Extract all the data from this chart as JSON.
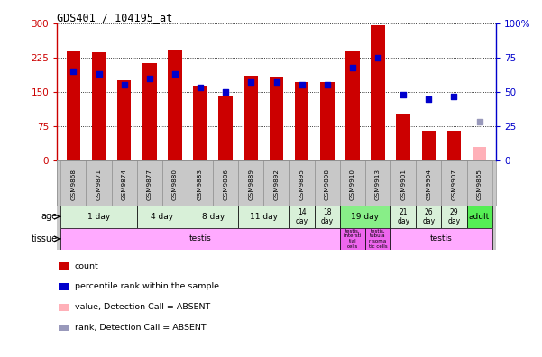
{
  "title": "GDS401 / 104195_at",
  "samples": [
    "GSM9868",
    "GSM9871",
    "GSM9874",
    "GSM9877",
    "GSM9880",
    "GSM9883",
    "GSM9886",
    "GSM9889",
    "GSM9892",
    "GSM9895",
    "GSM9898",
    "GSM9910",
    "GSM9913",
    "GSM9901",
    "GSM9904",
    "GSM9907",
    "GSM9865"
  ],
  "counts": [
    238,
    237,
    175,
    213,
    240,
    163,
    140,
    185,
    183,
    172,
    172,
    238,
    295,
    103,
    66,
    66,
    30
  ],
  "ranks": [
    65,
    63,
    55,
    60,
    63,
    53,
    50,
    57,
    57,
    55,
    55,
    68,
    75,
    48,
    45,
    47,
    28
  ],
  "absent": [
    false,
    false,
    false,
    false,
    false,
    false,
    false,
    false,
    false,
    false,
    false,
    false,
    false,
    false,
    false,
    false,
    true
  ],
  "absent_rank": [
    false,
    false,
    false,
    false,
    false,
    false,
    false,
    false,
    false,
    false,
    false,
    false,
    false,
    false,
    false,
    false,
    true
  ],
  "count_color": "#cc0000",
  "rank_color": "#0000cc",
  "absent_count_color": "#ffb0b8",
  "absent_rank_color": "#9999bb",
  "ylim_left": [
    0,
    300
  ],
  "ylim_right": [
    0,
    100
  ],
  "yticks_left": [
    0,
    75,
    150,
    225,
    300
  ],
  "yticks_right": [
    0,
    25,
    50,
    75,
    100
  ],
  "age_groups": [
    {
      "label": "1 day",
      "start": 0,
      "end": 2,
      "color": "#d8f0d8"
    },
    {
      "label": "4 day",
      "start": 3,
      "end": 4,
      "color": "#d8f0d8"
    },
    {
      "label": "8 day",
      "start": 5,
      "end": 6,
      "color": "#d8f0d8"
    },
    {
      "label": "11 day",
      "start": 7,
      "end": 8,
      "color": "#d8f0d8"
    },
    {
      "label": "14\nday",
      "start": 9,
      "end": 9,
      "color": "#d8f0d8"
    },
    {
      "label": "18\nday",
      "start": 10,
      "end": 10,
      "color": "#d8f0d8"
    },
    {
      "label": "19 day",
      "start": 11,
      "end": 12,
      "color": "#88ee88"
    },
    {
      "label": "21\nday",
      "start": 13,
      "end": 13,
      "color": "#d8f0d8"
    },
    {
      "label": "26\nday",
      "start": 14,
      "end": 14,
      "color": "#d8f0d8"
    },
    {
      "label": "29\nday",
      "start": 15,
      "end": 15,
      "color": "#d8f0d8"
    },
    {
      "label": "adult",
      "start": 16,
      "end": 16,
      "color": "#55ee55"
    }
  ],
  "tissue_groups": [
    {
      "label": "testis",
      "start": 0,
      "end": 10,
      "color": "#ffaaff"
    },
    {
      "label": "testis,\nintersti\ntial\ncells",
      "start": 11,
      "end": 11,
      "color": "#ee66ee"
    },
    {
      "label": "testis,\ntubula\nr soma\ntic cells",
      "start": 12,
      "end": 12,
      "color": "#ee66ee"
    },
    {
      "label": "testis",
      "start": 13,
      "end": 16,
      "color": "#ffaaff"
    }
  ],
  "bar_width": 0.55,
  "dot_size": 18,
  "label_area_color": "#c8c8c8",
  "xlabel_color": "#cc0000",
  "ylabel_right_color": "#0000cc",
  "legend_items": [
    {
      "color": "#cc0000",
      "label": "count"
    },
    {
      "color": "#0000cc",
      "label": "percentile rank within the sample"
    },
    {
      "color": "#ffb0b8",
      "label": "value, Detection Call = ABSENT"
    },
    {
      "color": "#9999bb",
      "label": "rank, Detection Call = ABSENT"
    }
  ]
}
